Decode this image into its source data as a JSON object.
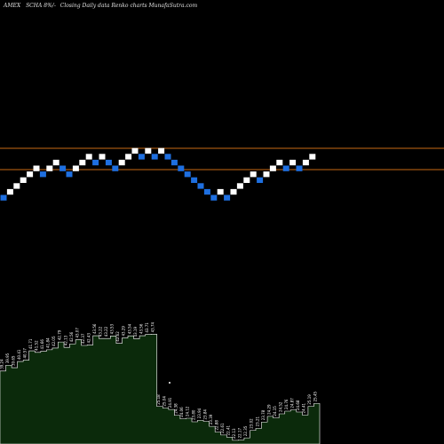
{
  "header": {
    "exchange": "AMEX",
    "symbol": "SCHA",
    "percent": "8%",
    "description": "Closing Daily data Renko charts MunafaSutra.com"
  },
  "colors": {
    "background": "#000000",
    "up_brick": "#ffffff",
    "down_brick": "#1e6fe0",
    "reference_line": "#c86a14",
    "volume_fill": "#0b2a0b",
    "volume_outline": "#ffffff"
  },
  "chart_data": [
    {
      "type": "renko",
      "title": "",
      "reference_levels": [
        "upper",
        "lower"
      ],
      "bricks": [
        {
          "direction": "down",
          "level": 0
        },
        {
          "direction": "up",
          "level": 1
        },
        {
          "direction": "up",
          "level": 2
        },
        {
          "direction": "up",
          "level": 3
        },
        {
          "direction": "up",
          "level": 4
        },
        {
          "direction": "up",
          "level": 5
        },
        {
          "direction": "down",
          "level": 4
        },
        {
          "direction": "up",
          "level": 5
        },
        {
          "direction": "up",
          "level": 6
        },
        {
          "direction": "down",
          "level": 5
        },
        {
          "direction": "down",
          "level": 4
        },
        {
          "direction": "up",
          "level": 5
        },
        {
          "direction": "up",
          "level": 6
        },
        {
          "direction": "up",
          "level": 7
        },
        {
          "direction": "down",
          "level": 6
        },
        {
          "direction": "up",
          "level": 7
        },
        {
          "direction": "down",
          "level": 6
        },
        {
          "direction": "down",
          "level": 5
        },
        {
          "direction": "up",
          "level": 6
        },
        {
          "direction": "up",
          "level": 7
        },
        {
          "direction": "up",
          "level": 8
        },
        {
          "direction": "down",
          "level": 7
        },
        {
          "direction": "up",
          "level": 8
        },
        {
          "direction": "down",
          "level": 7
        },
        {
          "direction": "up",
          "level": 8
        },
        {
          "direction": "down",
          "level": 7
        },
        {
          "direction": "down",
          "level": 6
        },
        {
          "direction": "down",
          "level": 5
        },
        {
          "direction": "down",
          "level": 4
        },
        {
          "direction": "down",
          "level": 3
        },
        {
          "direction": "down",
          "level": 2
        },
        {
          "direction": "down",
          "level": 1
        },
        {
          "direction": "down",
          "level": 0
        },
        {
          "direction": "up",
          "level": 1
        },
        {
          "direction": "down",
          "level": 0
        },
        {
          "direction": "up",
          "level": 1
        },
        {
          "direction": "up",
          "level": 2
        },
        {
          "direction": "up",
          "level": 3
        },
        {
          "direction": "up",
          "level": 4
        },
        {
          "direction": "down",
          "level": 3
        },
        {
          "direction": "up",
          "level": 4
        },
        {
          "direction": "up",
          "level": 5
        },
        {
          "direction": "up",
          "level": 6
        },
        {
          "direction": "down",
          "level": 5
        },
        {
          "direction": "up",
          "level": 6
        },
        {
          "direction": "down",
          "level": 5
        },
        {
          "direction": "up",
          "level": 6
        },
        {
          "direction": "up",
          "level": 7
        }
      ]
    },
    {
      "type": "area",
      "title": "",
      "ylabel": "",
      "values": [
        39.24,
        39.95,
        39.65,
        40.41,
        40.57,
        41.71,
        41.52,
        41.66,
        41.84,
        42.05,
        42.79,
        42.13,
        42.56,
        43.07,
        42.37,
        42.43,
        43.56,
        43.22,
        43.22,
        43.53,
        42.62,
        43.29,
        43.54,
        43.19,
        43.56,
        43.71,
        43.74,
        25.18,
        25.04,
        24.91,
        24.38,
        24.06,
        24.12,
        23.8,
        23.94,
        23.84,
        23.39,
        22.88,
        22.61,
        22.41,
        22.13,
        22.17,
        22.35,
        23.02,
        23.21,
        23.78,
        24.29,
        24.15,
        24.52,
        24.76,
        24.87,
        24.68,
        24.41,
        25.19,
        25.45
      ]
    }
  ]
}
